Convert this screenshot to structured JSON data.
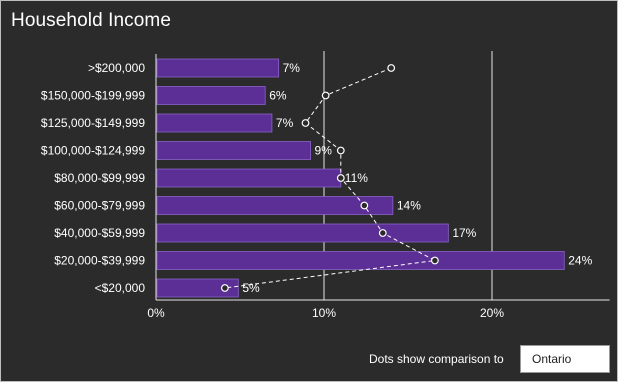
{
  "header": {
    "title": "Household Income"
  },
  "footer": {
    "label": "Dots show comparison to",
    "select_value": "Ontario"
  },
  "colors": {
    "background": "#2b2b2b",
    "bar": "#5c2f97",
    "bar_border": "#8a63c8",
    "dot_line": "#ffffff",
    "text": "#ffffff",
    "gridline": "#e6e6e6"
  },
  "chart_data": {
    "type": "bar",
    "orientation": "horizontal",
    "categories": [
      ">$200,000",
      "$150,000-$199,999",
      "$125,000-$149,999",
      "$100,000-$124,999",
      "$80,000-$99,999",
      "$60,000-$79,999",
      "$40,000-$59,999",
      "$20,000-$39,999",
      "<$20,000"
    ],
    "series": [
      {
        "values": [
          7.3,
          6.5,
          6.9,
          9.2,
          11.0,
          14.1,
          17.4,
          24.3,
          4.9
        ],
        "labels": [
          "7%",
          "6%",
          "7%",
          "9%",
          "11%",
          "14%",
          "17%",
          "24%",
          "5%"
        ]
      },
      {
        "name": "Ontario",
        "style": "dots",
        "values": [
          14.0,
          10.1,
          8.9,
          11.0,
          11.0,
          12.4,
          13.5,
          16.6,
          4.1
        ]
      }
    ],
    "xlim": [
      0,
      27
    ],
    "xticks": [
      0,
      10,
      20
    ],
    "xtick_labels": [
      "0%",
      "10%",
      "20%"
    ],
    "grid": "vertical"
  }
}
